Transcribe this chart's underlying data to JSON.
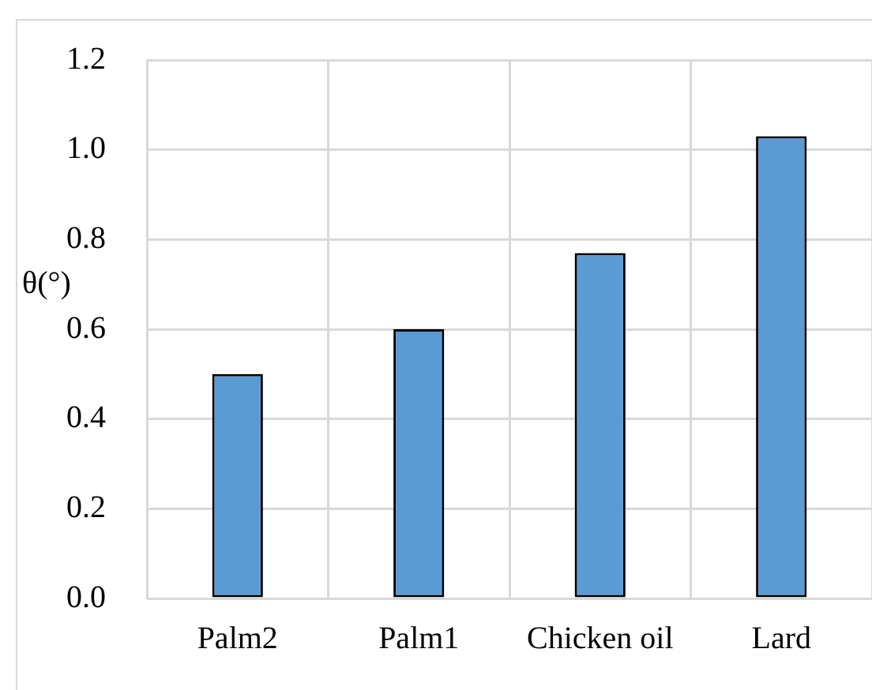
{
  "chart_data": {
    "type": "bar",
    "ylabel": "θ(°)",
    "categories": [
      "Palm2",
      "Palm1",
      "Chicken oil",
      "Lard"
    ],
    "values": [
      0.5,
      0.6,
      0.77,
      1.03
    ],
    "color": "#5b9bd5",
    "ylim": [
      0,
      1.2
    ],
    "yticks": [
      {
        "value": 0,
        "label": "0.0"
      },
      0.2,
      0.4,
      0.6,
      0.8,
      {
        "value": 1,
        "label": "1.0"
      },
      1.2
    ],
    "grid": true,
    "legend": false
  }
}
